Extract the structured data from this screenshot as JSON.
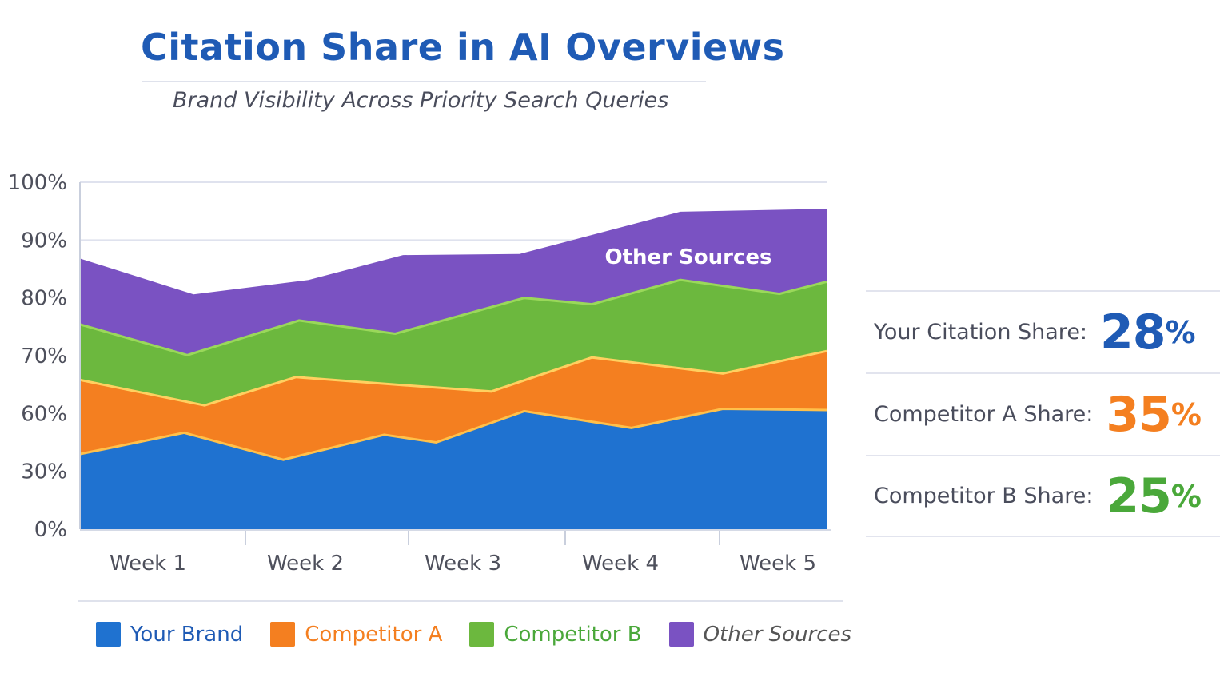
{
  "chart_data": {
    "type": "area",
    "stacked": true,
    "title": "Citation Share in AI Overviews",
    "subtitle": "Brand Visibility Across Priority Search Queries",
    "xlabel": "",
    "ylabel": "",
    "categories": [
      "Week 1",
      "Week 2",
      "Week 3",
      "Week 4",
      "Week 5"
    ],
    "y_ticks": [
      "100%",
      "90%",
      "80%",
      "70%",
      "60%",
      "30%",
      "0%"
    ],
    "y_tick_values": [
      100,
      90,
      80,
      70,
      60,
      30,
      0
    ],
    "ylim": [
      0,
      100
    ],
    "grid": true,
    "legend_position": "bottom",
    "series": [
      {
        "name": "Other Sources",
        "color": "#7a52c2",
        "label": "Other Sources",
        "x": [
          0.57,
          1.29,
          2.02,
          2.62,
          3.36,
          4.38,
          5.31
        ],
        "top": [
          86.8,
          80.6,
          83.1,
          87.4,
          87.6,
          94.9,
          95.4
        ]
      },
      {
        "name": "Competitor B",
        "color": "#6cb83e",
        "x": [
          0.57,
          1.25,
          1.96,
          2.57,
          3.39,
          3.82,
          4.38,
          5.01,
          5.31
        ],
        "top": [
          75.4,
          70.1,
          76.1,
          73.8,
          80.0,
          78.9,
          83.1,
          80.7,
          82.8
        ]
      },
      {
        "name": "Competitor A",
        "color": "#f47f20",
        "x": [
          0.57,
          1.36,
          1.94,
          2.62,
          3.18,
          3.82,
          4.65,
          5.31
        ],
        "top": [
          65.8,
          61.4,
          66.3,
          64.9,
          63.8,
          69.7,
          66.9,
          70.8
        ]
      },
      {
        "name": "Your Brand",
        "color": "#1f72d0",
        "x": [
          0.57,
          1.23,
          1.86,
          2.5,
          2.83,
          3.39,
          4.07,
          4.65,
          5.31
        ],
        "top": [
          39,
          50,
          36,
          49,
          45,
          60.4,
          52.5,
          60.8,
          60.6
        ]
      }
    ]
  },
  "legend": [
    {
      "label": "Your Brand",
      "color": "#1f72d0"
    },
    {
      "label": "Competitor A",
      "color": "#f47f20"
    },
    {
      "label": "Competitor B",
      "color": "#6cb83e"
    },
    {
      "label": "Other Sources",
      "color": "#7a52c2"
    }
  ],
  "stats": [
    {
      "label": "Your Citation Share:",
      "value": "28",
      "unit": "%",
      "color": "#1f5bb5"
    },
    {
      "label": "Competitor A Share:",
      "value": "35",
      "unit": "%",
      "color": "#f47f20"
    },
    {
      "label": "Competitor B Share:",
      "value": "25",
      "unit": "%",
      "color": "#4aa83a"
    }
  ]
}
